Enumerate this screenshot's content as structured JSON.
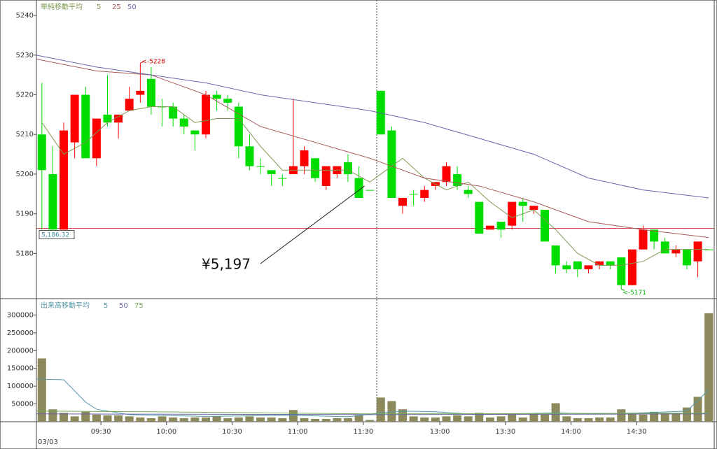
{
  "chart_data": {
    "type": "candlestick",
    "date_label": "03/03",
    "xlim": [
      -0.5,
      61.5
    ],
    "xticks": [
      {
        "value": 5.4,
        "label": "09:30"
      },
      {
        "value": 11.4,
        "label": "10:00"
      },
      {
        "value": 17.4,
        "label": "10:30"
      },
      {
        "value": 23.4,
        "label": "11:00"
      },
      {
        "value": 29.4,
        "label": "11:30"
      },
      {
        "value": 36.4,
        "label": "13:00"
      },
      {
        "value": 42.4,
        "label": "13:30"
      },
      {
        "value": 48.4,
        "label": "14:00"
      },
      {
        "value": 54.4,
        "label": "14:30"
      }
    ],
    "ylim": [
      5168.6,
      5243.9
    ],
    "yticks": [
      5180,
      5190,
      5200,
      5210,
      5220,
      5230,
      5240
    ],
    "up_color": "#ff0000",
    "down_color": "#00dd00",
    "ma_title": "単純移動平均",
    "open": [
      5210,
      5200,
      5186,
      5208,
      5220,
      5204,
      5215,
      5213,
      5216,
      5220,
      5224,
      5217,
      5217,
      5214,
      5211,
      5210,
      5220,
      5219,
      5217,
      5207,
      5202,
      5201,
      5199,
      5200,
      5202,
      5204,
      5197,
      5200,
      5203,
      5199,
      5196,
      5221,
      5211,
      5192,
      5195,
      5194,
      5197,
      5198,
      5200,
      5196,
      5193,
      5186,
      5188,
      5187,
      5193,
      5191,
      5191,
      5182,
      5177,
      5178,
      5176,
      5177,
      5178,
      5179,
      5172,
      5181,
      5186,
      5183,
      5180,
      5181,
      5178,
      5181
    ],
    "high": [
      5223,
      5207,
      5213,
      5220,
      5222,
      5214,
      5225,
      5215,
      5222,
      5228,
      5227,
      5219,
      5218,
      5215,
      5211,
      5221,
      5221,
      5220,
      5218,
      5210,
      5204,
      5201,
      5200,
      5219,
      5207,
      5204,
      5202,
      5202,
      5205,
      5202,
      5196,
      5221,
      5212,
      5194,
      5196,
      5197,
      5198,
      5203,
      5202,
      5197,
      5193,
      5187,
      5188,
      5193,
      5194,
      5192,
      5191,
      5182,
      5178,
      5178,
      5177,
      5178,
      5178,
      5179,
      5181,
      5187,
      5186,
      5184,
      5182,
      5181,
      5183,
      5181
    ],
    "low": [
      5186,
      5186,
      5186,
      5204,
      5204,
      5202,
      5212,
      5209,
      5216,
      5218,
      5215,
      5212,
      5212,
      5210,
      5206,
      5209,
      5216,
      5216,
      5204,
      5201,
      5200,
      5197,
      5197,
      5200,
      5200,
      5198,
      5196,
      5199,
      5198,
      5194,
      5196,
      5210,
      5194,
      5190,
      5192,
      5193,
      5196,
      5197,
      5196,
      5194,
      5185,
      5186,
      5184,
      5186,
      5188,
      5190,
      5183,
      5175,
      5175,
      5174,
      5175,
      5176,
      5176,
      5171,
      5172,
      5181,
      5181,
      5180,
      5179,
      5176,
      5174,
      5181
    ],
    "close": [
      5201,
      5186,
      5211,
      5220,
      5204,
      5214,
      5213,
      5215,
      5219,
      5221,
      5217,
      5217,
      5214,
      5212,
      5210,
      5220,
      5219,
      5218,
      5207,
      5202,
      5202,
      5200,
      5199,
      5202,
      5206,
      5199,
      5202,
      5202,
      5200,
      5194,
      5196,
      5210,
      5194,
      5194,
      5195,
      5196,
      5198,
      5202,
      5197,
      5195,
      5185,
      5187,
      5186,
      5193,
      5192,
      5192,
      5183,
      5177,
      5176,
      5176,
      5177,
      5178,
      5177,
      5172,
      5181,
      5186,
      5183,
      5180,
      5181,
      5177,
      5183,
      5181
    ],
    "ma": [
      {
        "name": "5",
        "color": "#7f9a55",
        "x": [
          0,
          2,
          4,
          6,
          8,
          10,
          12,
          14,
          16,
          18,
          20,
          22,
          24,
          26,
          28,
          30,
          31,
          33,
          35,
          37,
          39,
          41,
          43,
          45,
          47,
          49,
          51,
          53,
          55,
          57,
          59,
          61
        ],
        "values": [
          5213,
          5205,
          5208,
          5213,
          5216,
          5217,
          5217,
          5213,
          5214,
          5214,
          5207,
          5201,
          5201,
          5201,
          5201,
          5198,
          5200,
          5204,
          5199,
          5196,
          5198,
          5193,
          5189,
          5191,
          5186,
          5180,
          5177,
          5177,
          5178,
          5181,
          5181,
          5181
        ]
      },
      {
        "name": "25",
        "color": "#a85a5a",
        "x": [
          -0.5,
          5,
          10,
          15,
          20,
          25,
          30,
          31,
          35,
          40,
          45,
          50,
          55,
          61
        ],
        "values": [
          5229,
          5226,
          5225,
          5220,
          5212,
          5208,
          5204,
          5203,
          5199,
          5197,
          5193,
          5188,
          5186,
          5184
        ]
      },
      {
        "name": "50",
        "color": "#6666aa",
        "x": [
          -0.5,
          5,
          10,
          15,
          20,
          25,
          30,
          35,
          40,
          45,
          50,
          55,
          61
        ],
        "values": [
          5230,
          5227,
          5225,
          5223,
          5220,
          5218,
          5216,
          5213,
          5209,
          5205,
          5199,
          5196,
          5194
        ]
      }
    ],
    "price_line": {
      "value": 5186.32,
      "label": "5,186.32",
      "color": "#cc4444"
    },
    "annotations": [
      {
        "x": 9,
        "value": 5228,
        "label": "<-5228",
        "color": "#dd0000"
      },
      {
        "x": 53,
        "value": 5171,
        "label": "<-5171",
        "color": "#00aa00"
      },
      {
        "x": 29,
        "value": 5197,
        "label": "¥5,197"
      }
    ],
    "volume": {
      "color": "#8c8a5c",
      "ylim": [
        0,
        346000
      ],
      "yticks": [
        50000,
        100000,
        150000,
        200000,
        250000,
        300000
      ],
      "ma_title": "出来高移動平均",
      "values": [
        178000,
        35000,
        25000,
        15000,
        28000,
        20000,
        18000,
        18000,
        15000,
        12000,
        10000,
        15000,
        12000,
        10000,
        12000,
        12000,
        15000,
        10000,
        12000,
        15000,
        12000,
        12000,
        10000,
        33000,
        10000,
        8000,
        8000,
        10000,
        10000,
        18000,
        5000,
        68000,
        58000,
        35000,
        15000,
        12000,
        12000,
        15000,
        18000,
        15000,
        25000,
        12000,
        15000,
        20000,
        12000,
        22000,
        20000,
        52000,
        15000,
        10000,
        10000,
        12000,
        12000,
        35000,
        22000,
        20000,
        28000,
        25000,
        25000,
        40000,
        70000,
        305000
      ],
      "ma": [
        {
          "name": "5",
          "color": "#5599aa",
          "x": [
            -0.5,
            2,
            4,
            5,
            8,
            15,
            23,
            28,
            31,
            33,
            36,
            40,
            47,
            50,
            55,
            59,
            60,
            61
          ],
          "values": [
            120000,
            118000,
            55000,
            35000,
            20000,
            15000,
            18000,
            14000,
            25000,
            30000,
            28000,
            20000,
            25000,
            22000,
            25000,
            30000,
            60000,
            90000
          ]
        },
        {
          "name": "50",
          "color": "#6666aa",
          "x": [
            -0.5,
            30,
            61
          ],
          "values": [
            22000,
            20000,
            22000
          ]
        },
        {
          "name": "75",
          "color": "#77aa55",
          "x": [
            -0.5,
            10,
            30,
            61
          ],
          "values": [
            30000,
            28000,
            22000,
            24000
          ]
        }
      ]
    }
  }
}
